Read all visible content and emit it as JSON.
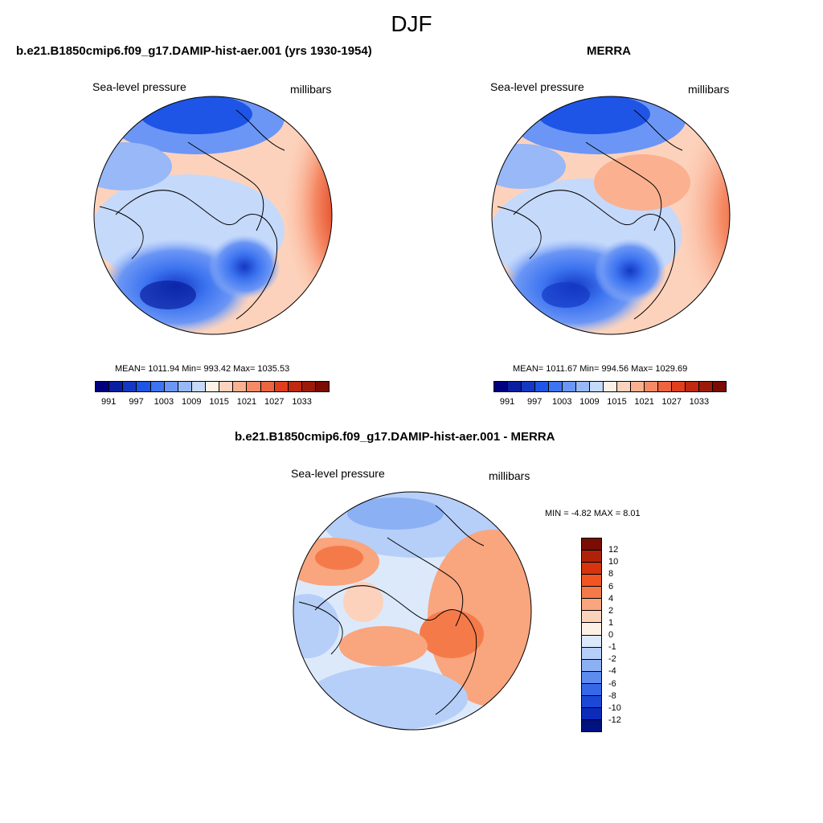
{
  "season": "DJF",
  "panels": [
    {
      "title": "b.e21.B1850cmip6.f09_g17.DAMIP-hist-aer.001 (yrs 1930-1954)",
      "variable": "Sea-level pressure",
      "units": "millibars",
      "stats": "MEAN= 1011.94  Min= 993.42  Max= 1035.53"
    },
    {
      "title": "MERRA",
      "variable": "Sea-level pressure",
      "units": "millibars",
      "stats": "MEAN= 1011.67  Min= 994.56  Max= 1029.69"
    },
    {
      "title": "b.e21.B1850cmip6.f09_g17.DAMIP-hist-aer.001 - MERRA",
      "variable": "Sea-level pressure",
      "units": "millibars",
      "stats": "MIN =  -4.82 MAX =   8.01"
    }
  ],
  "abs_colorbar": {
    "colors": [
      "#00007f",
      "#0a1fa0",
      "#1438c4",
      "#1e55e6",
      "#3d74f0",
      "#6b96f5",
      "#98b8f8",
      "#c5d9fb",
      "#fff0e6",
      "#fdd2bc",
      "#fbb08f",
      "#f58a65",
      "#ec6440",
      "#e03e1c",
      "#c02810",
      "#9c1a0a",
      "#7a0c04"
    ],
    "tick_labels": [
      "991",
      "997",
      "1003",
      "1009",
      "1015",
      "1021",
      "1027",
      "1033"
    ]
  },
  "diff_colorbar": {
    "colors": [
      "#7a0c04",
      "#b02208",
      "#d8330f",
      "#f25522",
      "#f57a4a",
      "#f9a57e",
      "#fdd2bc",
      "#fff0e6",
      "#dce9fb",
      "#b6cff8",
      "#8cb0f4",
      "#5d8cef",
      "#3568e8",
      "#1c48d8",
      "#0b2cb8",
      "#00127f"
    ],
    "tick_labels": [
      "12",
      "10",
      "8",
      "6",
      "4",
      "2",
      "1",
      "0",
      "-1",
      "-2",
      "-4",
      "-6",
      "-8",
      "-10",
      "-12"
    ]
  }
}
